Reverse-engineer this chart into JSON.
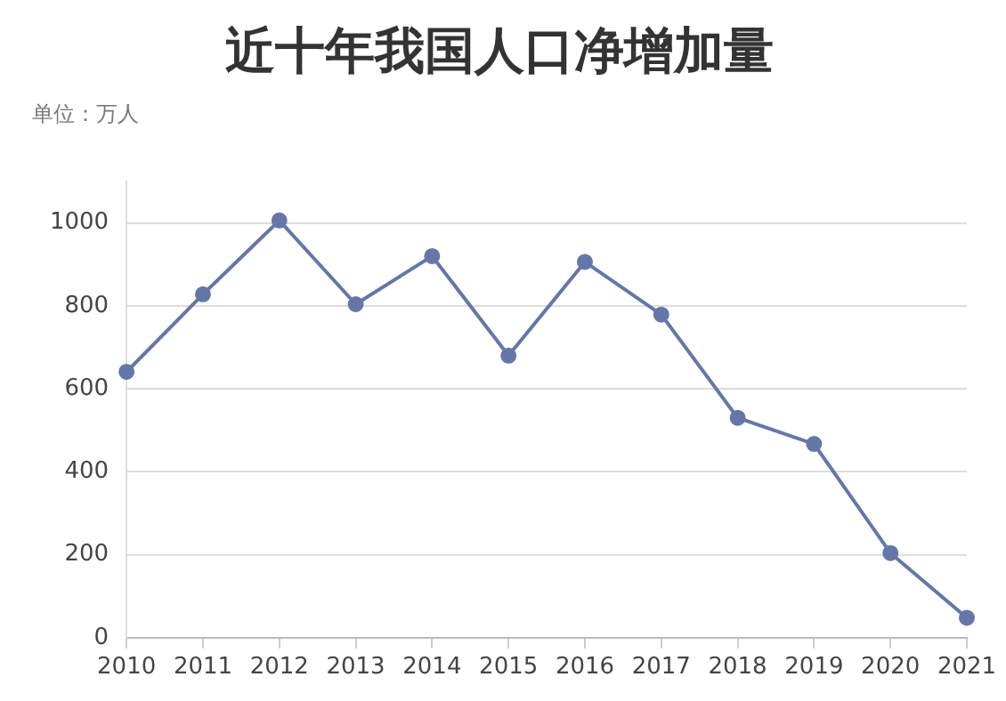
{
  "chart_data": {
    "type": "line",
    "title": "近十年我国人口净增加量",
    "subtitle": "单位：万人",
    "categories": [
      "2010",
      "2011",
      "2012",
      "2013",
      "2014",
      "2015",
      "2016",
      "2017",
      "2018",
      "2019",
      "2020",
      "2021"
    ],
    "series": [
      {
        "color": "#6577a8",
        "values": [
          641,
          828,
          1006,
          804,
          920,
          680,
          906,
          779,
          530,
          467,
          204,
          48
        ]
      }
    ],
    "ylim": [
      0,
      1100
    ],
    "yticks": [
      0,
      200,
      400,
      600,
      800,
      1000
    ],
    "grid": "y",
    "legend": false,
    "marker": "circle",
    "line_style": "solid"
  }
}
